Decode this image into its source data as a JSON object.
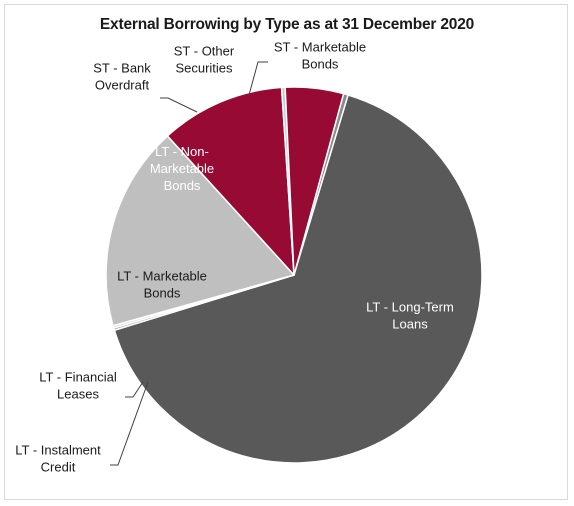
{
  "chart_data": {
    "type": "pie",
    "title": "External Borrowing by Type as at 31 December 2020",
    "slices": [
      {
        "label": "ST - Marketable Bonds",
        "lines": [
          "ST - Marketable",
          "Bonds"
        ],
        "value": 0.4,
        "color": "#8b8b8b",
        "text_color": "#1a1a1a"
      },
      {
        "label": "LT - Long-Term Loans",
        "lines": [
          "LT - Long-Term",
          "Loans"
        ],
        "value": 65.6,
        "color": "#595959",
        "text_color": "#ffffff"
      },
      {
        "label": "LT - Instalment Credit",
        "lines": [
          "LT - Instalment",
          "Credit"
        ],
        "value": 0.2,
        "color": "#a6a6a6",
        "text_color": "#1a1a1a"
      },
      {
        "label": "LT - Financial Leases",
        "lines": [
          "LT - Financial",
          "Leases"
        ],
        "value": 0.2,
        "color": "#d0d0d0",
        "text_color": "#1a1a1a"
      },
      {
        "label": "LT - Marketable Bonds",
        "lines": [
          "LT - Marketable",
          "Bonds"
        ],
        "value": 17.6,
        "color": "#bfbfbf",
        "text_color": "#1a1a1a"
      },
      {
        "label": "LT - Non-Marketable Bonds",
        "lines": [
          "LT - Non-",
          "Marketable",
          "Bonds"
        ],
        "value": 10.7,
        "color": "#970a34",
        "text_color": "#ffffff"
      },
      {
        "label": "ST - Bank Overdraft",
        "lines": [
          "ST - Bank",
          "Overdraft"
        ],
        "value": 0.3,
        "color": "#c8c8c8",
        "text_color": "#1a1a1a"
      },
      {
        "label": "ST - Other Securities",
        "lines": [
          "ST - Other",
          "Securities"
        ],
        "value": 5.0,
        "color": "#970a34",
        "text_color": "#1a1a1a"
      }
    ],
    "start_angle_deg": -74.7,
    "direction": "clockwise",
    "legend": "none"
  }
}
